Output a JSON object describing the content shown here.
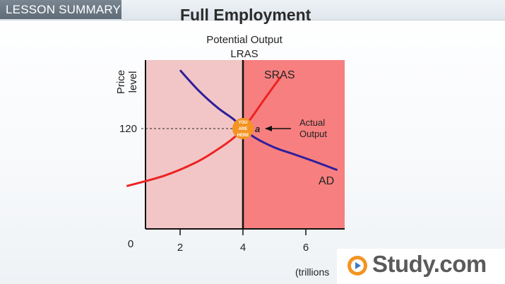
{
  "header": {
    "section_label": "LESSON SUMMARY",
    "title": "Full Employment"
  },
  "chart_data": {
    "type": "line",
    "title": "",
    "potential_label_1": "Potential Output",
    "potential_label_2": "LRAS",
    "ylabel_1": "Price",
    "ylabel_2": "level",
    "xlabel": "(trillions",
    "origin_label": "0",
    "x_ticks": [
      2,
      4,
      6
    ],
    "y_ticks": [
      120
    ],
    "lras_x": 4,
    "equilibrium": {
      "x": 4,
      "y": 120
    },
    "series": [
      {
        "name": "SRAS",
        "x": [
          0.3,
          1.5,
          2.5,
          3.2,
          3.7,
          4.0,
          4.3,
          4.7,
          5.2
        ],
        "y": [
          59,
          70,
          84,
          98,
          110,
          120,
          133,
          152,
          175
        ]
      },
      {
        "name": "AD",
        "x": [
          2.0,
          2.6,
          3.2,
          3.7,
          4.0,
          4.4,
          5.0,
          5.6,
          6.2,
          7.0
        ],
        "y": [
          182,
          160,
          142,
          130,
          120,
          110,
          100,
          93,
          86,
          76
        ]
      }
    ],
    "annotations": {
      "marker_line1": "YOU",
      "marker_line2": "ARE",
      "marker_line3": "HERE",
      "point_label": "a",
      "actual_line1": "Actual",
      "actual_line2": "Output"
    },
    "colors": {
      "left_region": "#f2c6c6",
      "right_region": "#f77f7f",
      "sras": "#ee2222",
      "ad": "#2f1e9c",
      "lras": "#111111",
      "marker": "#f39422"
    }
  },
  "logo": {
    "text": "Study.com",
    "brand_color": "#f39422"
  }
}
